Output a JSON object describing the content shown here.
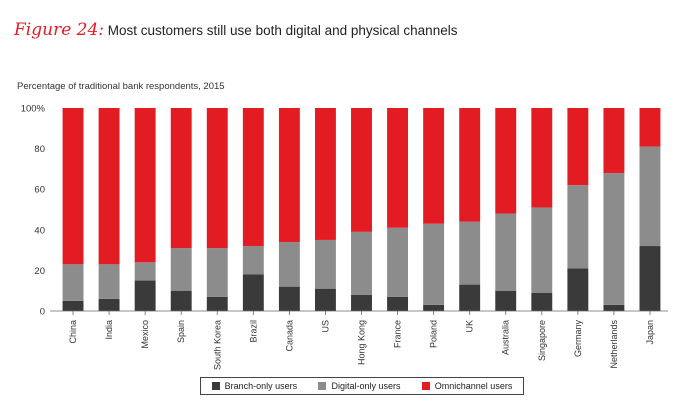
{
  "figure": {
    "label": "Figure 24:",
    "title": "Most customers still use both digital and physical channels"
  },
  "chart_data": {
    "type": "bar",
    "stacked": true,
    "ylabel": "Percentage of traditional bank respondents, 2015",
    "ylim": [
      0,
      100
    ],
    "yticks": [
      "0",
      "20",
      "40",
      "60",
      "80",
      "100%"
    ],
    "categories": [
      "China",
      "India",
      "Mexico",
      "Spain",
      "South Korea",
      "Brazil",
      "Canada",
      "US",
      "Hong Kong",
      "France",
      "Poland",
      "UK",
      "Australia",
      "Singapore",
      "Germany",
      "Netherlands",
      "Japan"
    ],
    "series": [
      {
        "name": "Branch-only users",
        "color": "#3a3a3a",
        "values": [
          5,
          6,
          15,
          10,
          7,
          18,
          12,
          11,
          8,
          7,
          3,
          13,
          10,
          9,
          21,
          3,
          32
        ]
      },
      {
        "name": "Digital-only users",
        "color": "#8c8c8c",
        "values": [
          18,
          17,
          9,
          21,
          24,
          14,
          22,
          24,
          31,
          34,
          40,
          31,
          38,
          42,
          41,
          65,
          49
        ]
      },
      {
        "name": "Omnichannel users",
        "color": "#e31b23",
        "values": [
          77,
          77,
          76,
          69,
          69,
          68,
          66,
          65,
          61,
          59,
          57,
          56,
          52,
          49,
          38,
          32,
          19
        ]
      }
    ],
    "grid": false,
    "legend_position": "bottom"
  }
}
